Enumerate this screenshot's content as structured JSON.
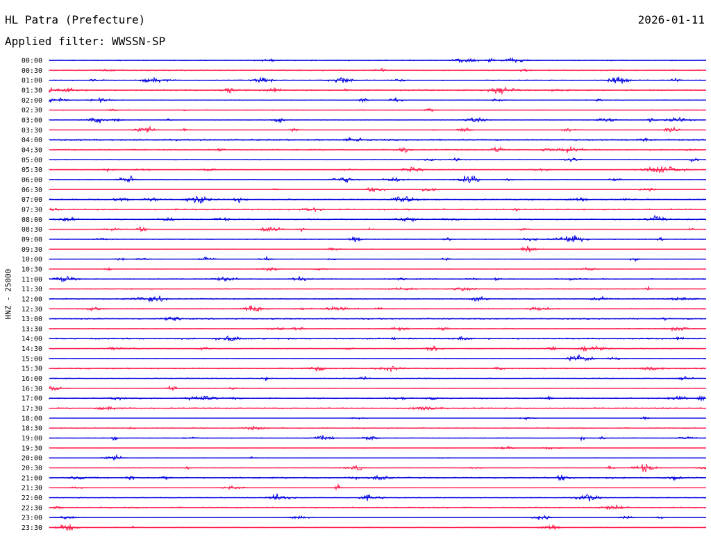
{
  "header": {
    "station": "HL Patra (Prefecture)",
    "date": "2026-01-11",
    "filter_label": "Applied filter:",
    "filter_value": "WWSSN-SP"
  },
  "channel_label": "HNZ - 25000",
  "colors": {
    "even_row": "#0000e0",
    "odd_row": "#ff1a4a",
    "text": "#000000"
  },
  "rows": [
    "00:00",
    "00:30",
    "01:00",
    "01:30",
    "02:00",
    "02:30",
    "03:00",
    "03:30",
    "04:00",
    "04:30",
    "05:00",
    "05:30",
    "06:00",
    "06:30",
    "07:00",
    "07:30",
    "08:00",
    "08:30",
    "09:00",
    "09:30",
    "10:00",
    "10:30",
    "11:00",
    "11:30",
    "12:00",
    "12:30",
    "13:00",
    "13:30",
    "14:00",
    "14:30",
    "15:00",
    "15:30",
    "16:00",
    "16:30",
    "17:00",
    "17:30",
    "18:00",
    "18:30",
    "19:00",
    "19:30",
    "20:00",
    "20:30",
    "21:00",
    "21:30",
    "22:00",
    "22:30",
    "23:00",
    "23:30"
  ]
}
